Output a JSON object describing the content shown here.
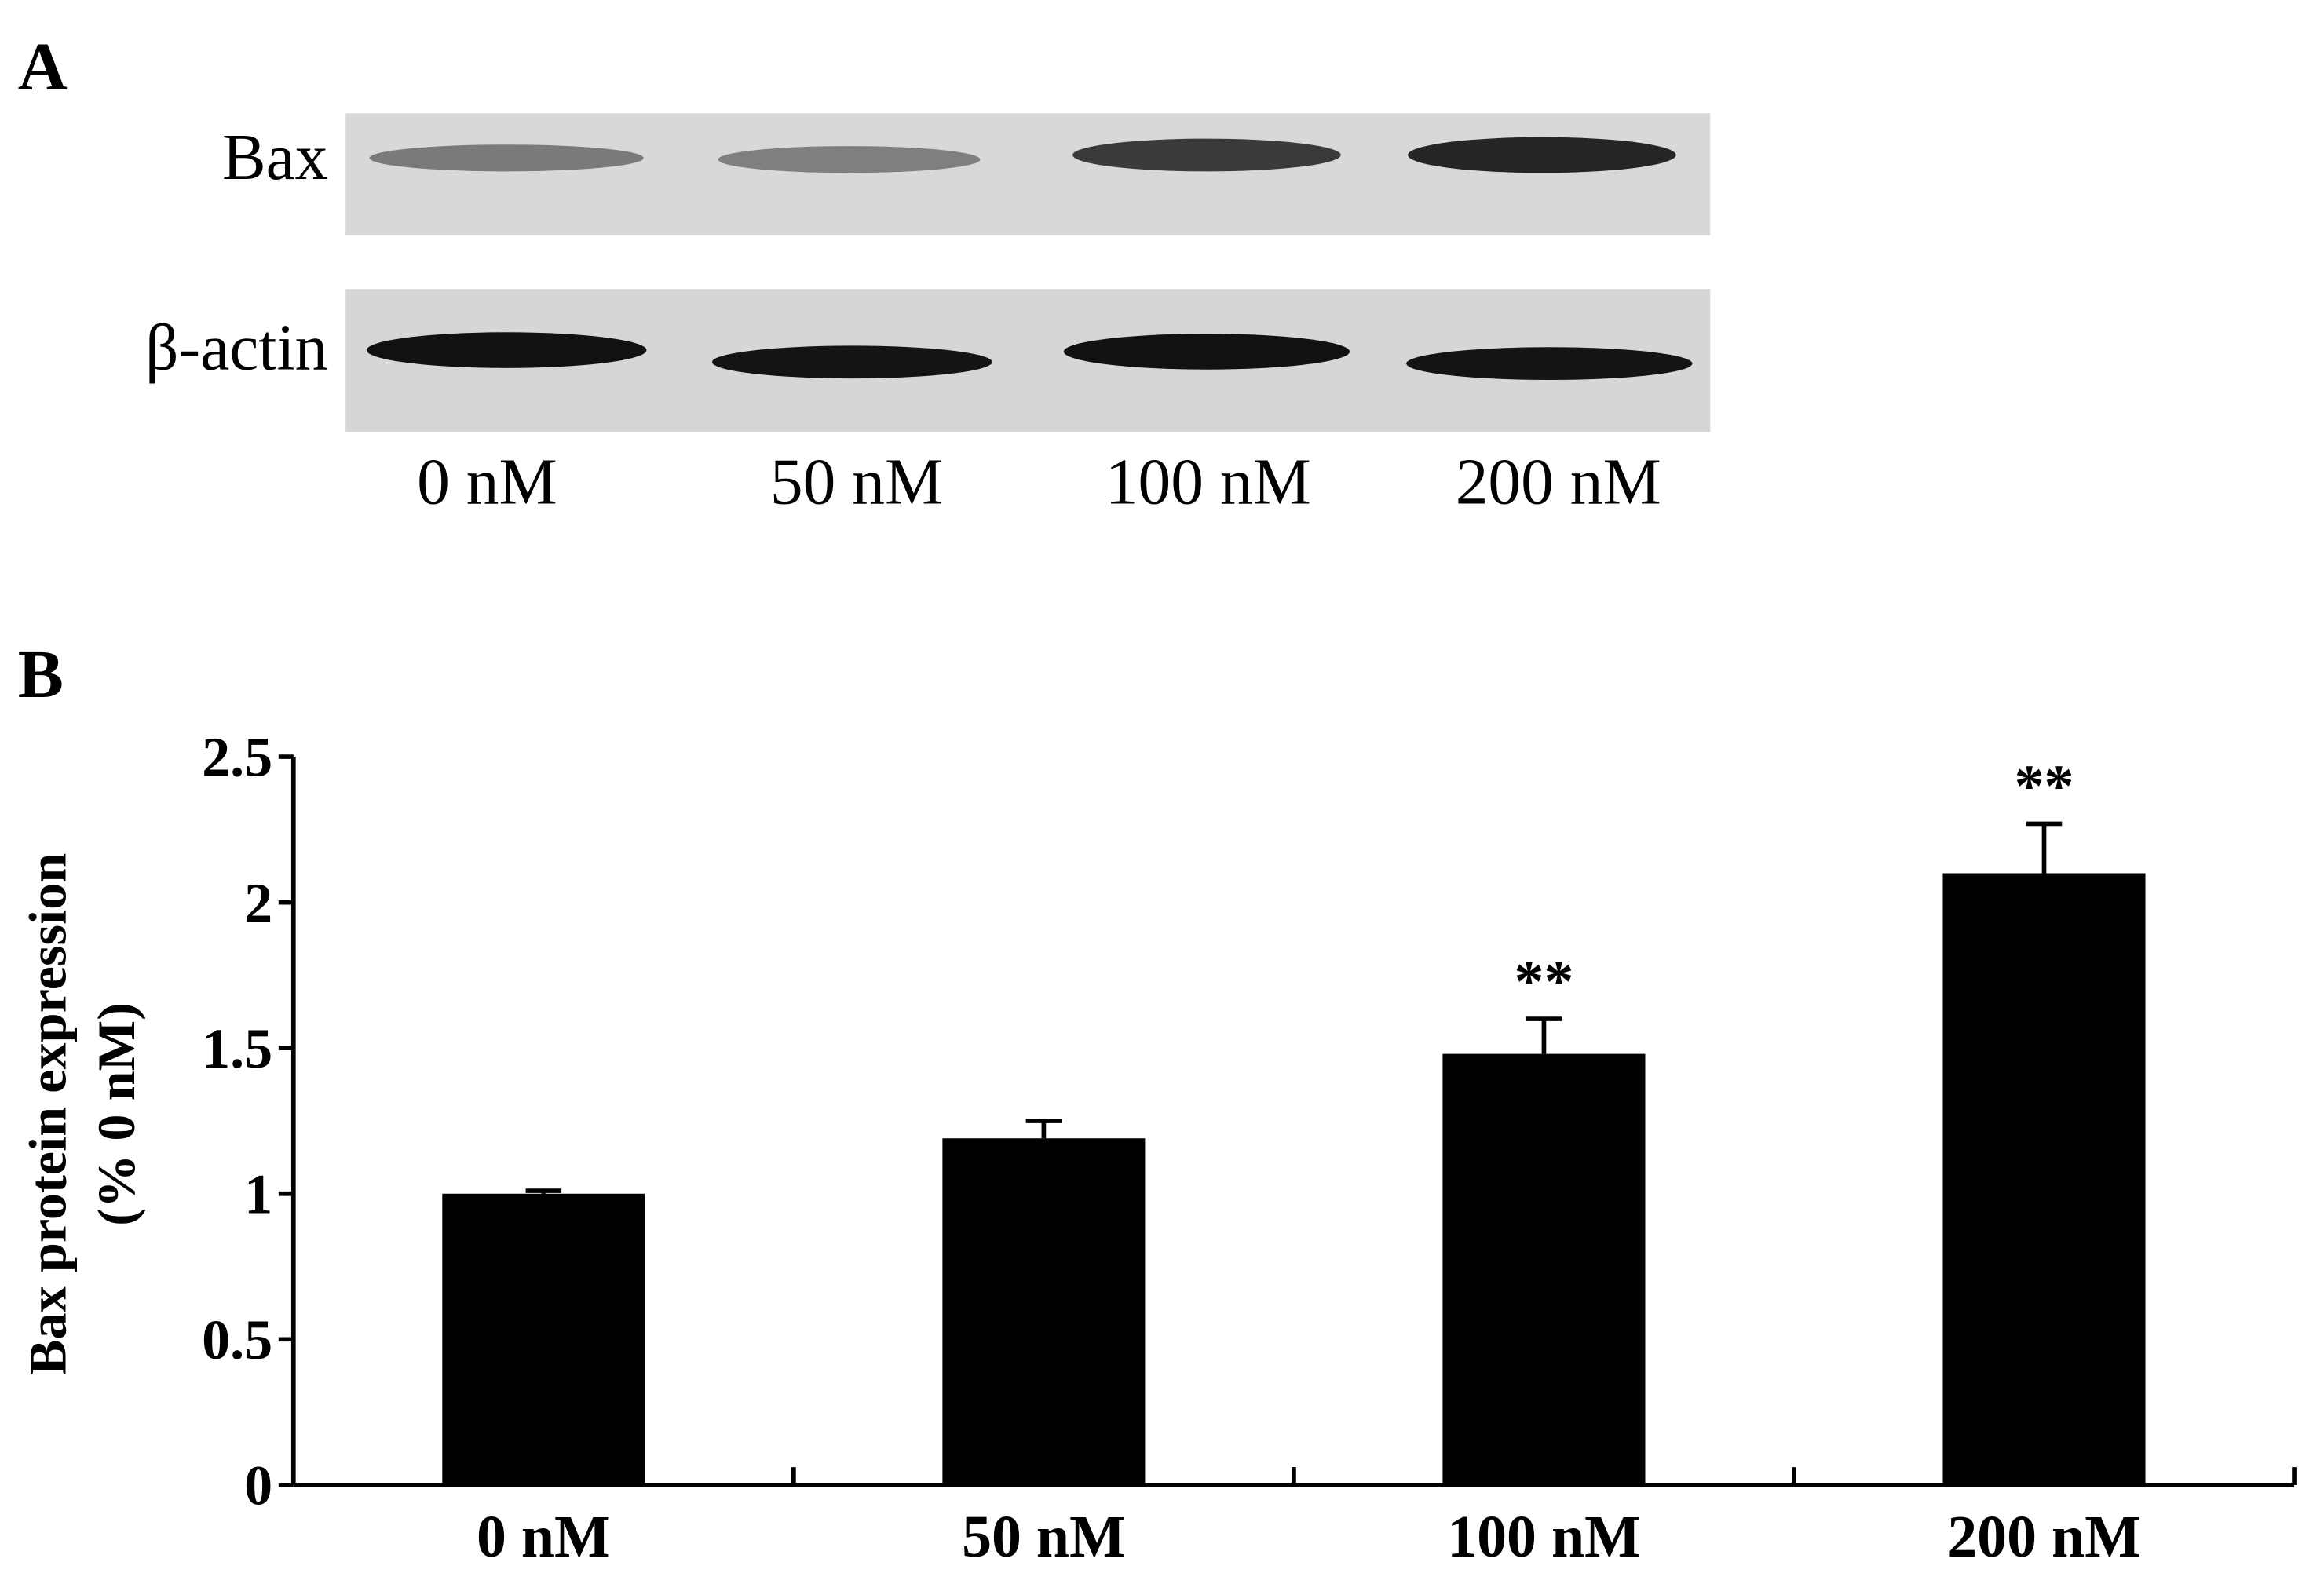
{
  "panels": [
    "A",
    "B"
  ],
  "blot": {
    "rows": [
      "Bax",
      "β-actin"
    ],
    "lanes": [
      "0 nM",
      "50 nM",
      "100 nM",
      "200 nM"
    ]
  },
  "chart_data": {
    "type": "bar",
    "y_label": [
      "Bax protein expression",
      "(% 0  nM)"
    ],
    "categories": [
      "0 nM",
      "50 nM",
      "100 nM",
      "200 nM"
    ],
    "values": [
      1.0,
      1.19,
      1.48,
      2.1
    ],
    "errors": [
      0.01,
      0.06,
      0.12,
      0.17
    ],
    "significance": [
      null,
      null,
      "**",
      "**"
    ],
    "color": "#000000",
    "ylim": [
      0,
      2.5
    ],
    "yticks": [
      0,
      0.5,
      1,
      1.5,
      2,
      2.5
    ]
  }
}
